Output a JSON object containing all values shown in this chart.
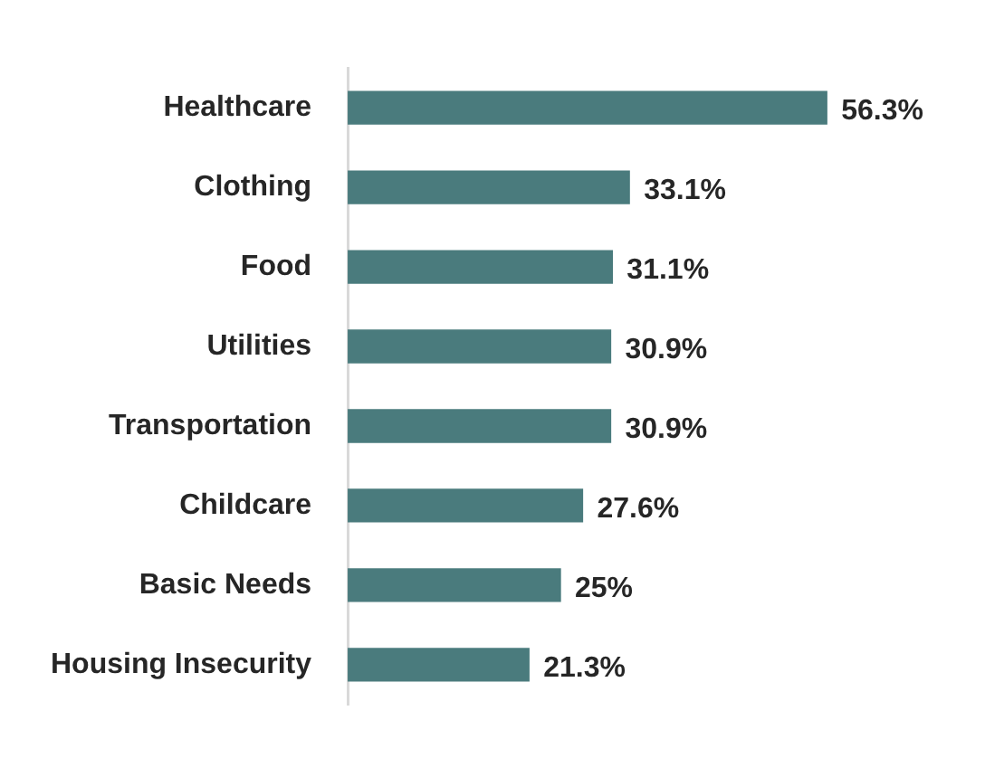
{
  "chart_data": {
    "type": "bar",
    "orientation": "horizontal",
    "categories": [
      "Healthcare",
      "Clothing",
      "Food",
      "Utilities",
      "Transportation",
      "Childcare",
      "Basic Needs",
      "Housing Insecurity"
    ],
    "values": [
      56.3,
      33.1,
      31.1,
      30.9,
      30.9,
      27.6,
      25,
      21.3
    ],
    "value_labels": [
      "56.3%",
      "33.1%",
      "31.1%",
      "30.9%",
      "30.9%",
      "27.6%",
      "25%",
      "21.3%"
    ],
    "color": "#4a7b7d",
    "tick_labels": "y"
  }
}
